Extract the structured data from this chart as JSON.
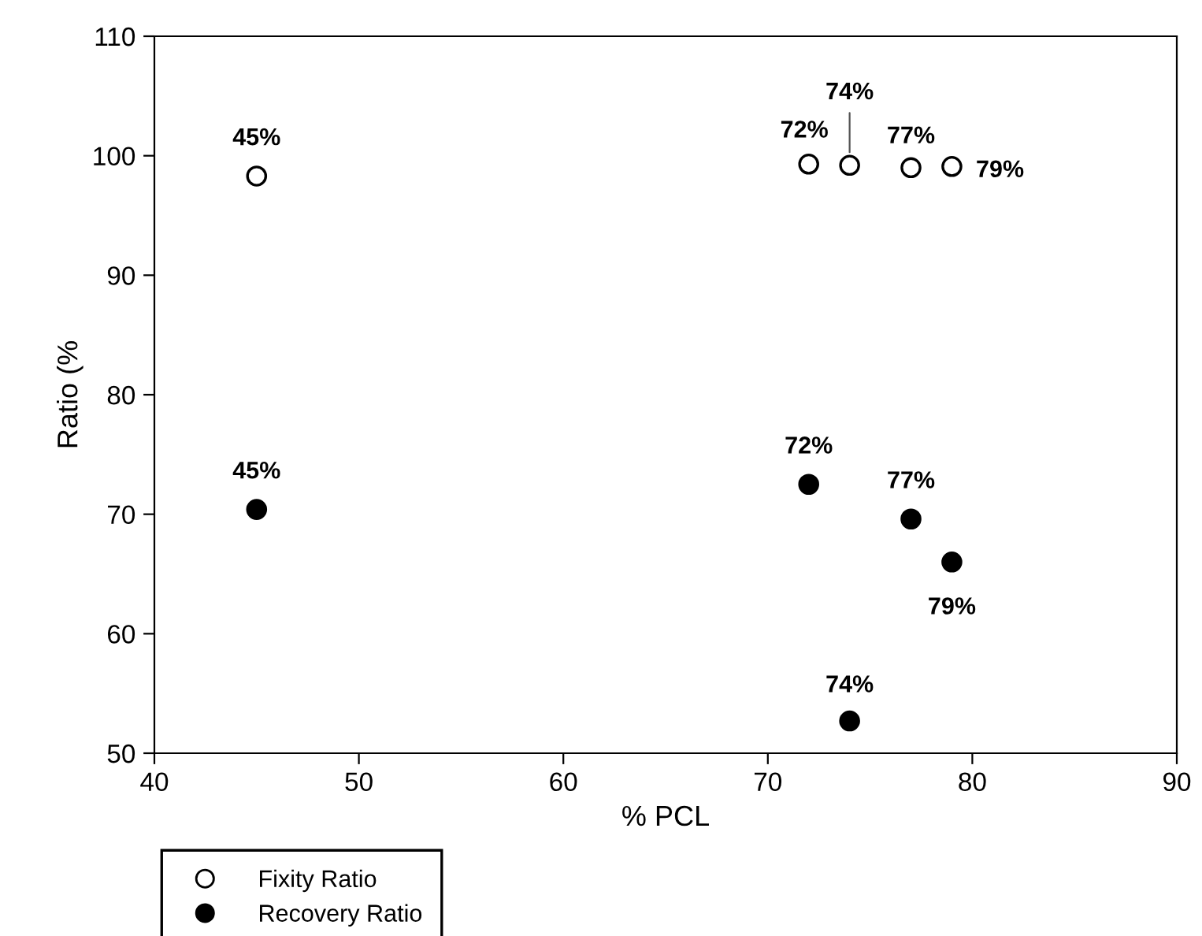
{
  "chart_data": {
    "type": "scatter",
    "xlabel": "% PCL",
    "ylabel": "Ratio (%",
    "xlim": [
      40,
      90
    ],
    "xticks": [
      40,
      50,
      60,
      70,
      80,
      90
    ],
    "ylim": [
      50,
      110
    ],
    "yticks": [
      50,
      60,
      70,
      80,
      90,
      100,
      110
    ],
    "grid": false,
    "legend": "bottom left",
    "marker": "circle",
    "series": [
      {
        "name": "Fixity Ratio",
        "color": "#ffffff",
        "x": [
          45,
          72,
          74,
          77,
          79
        ],
        "values": [
          98.3,
          99.3,
          99.2,
          99.0,
          99.1
        ]
      },
      {
        "name": "Recovery Ratio",
        "color": "#000000",
        "x": [
          45,
          72,
          74,
          77,
          79
        ],
        "values": [
          70.4,
          72.5,
          52.7,
          69.6,
          66.0
        ]
      }
    ],
    "annotations": [
      {
        "text": "45%",
        "x": 45,
        "y": 98.3
      },
      {
        "text": "72%",
        "x": 72,
        "y": 99.3
      },
      {
        "text": "74%",
        "x": 74,
        "y": 99.2
      },
      {
        "text": "77%",
        "x": 77,
        "y": 99.0
      },
      {
        "text": "79%",
        "x": 79,
        "y": 99.1
      },
      {
        "text": "45%",
        "x": 45,
        "y": 70.4
      },
      {
        "text": "72%",
        "x": 72,
        "y": 72.5
      },
      {
        "text": "74%",
        "x": 74,
        "y": 52.7
      },
      {
        "text": "77%",
        "x": 77,
        "y": 69.6
      },
      {
        "text": "79%",
        "x": 79,
        "y": 66.0
      }
    ]
  }
}
